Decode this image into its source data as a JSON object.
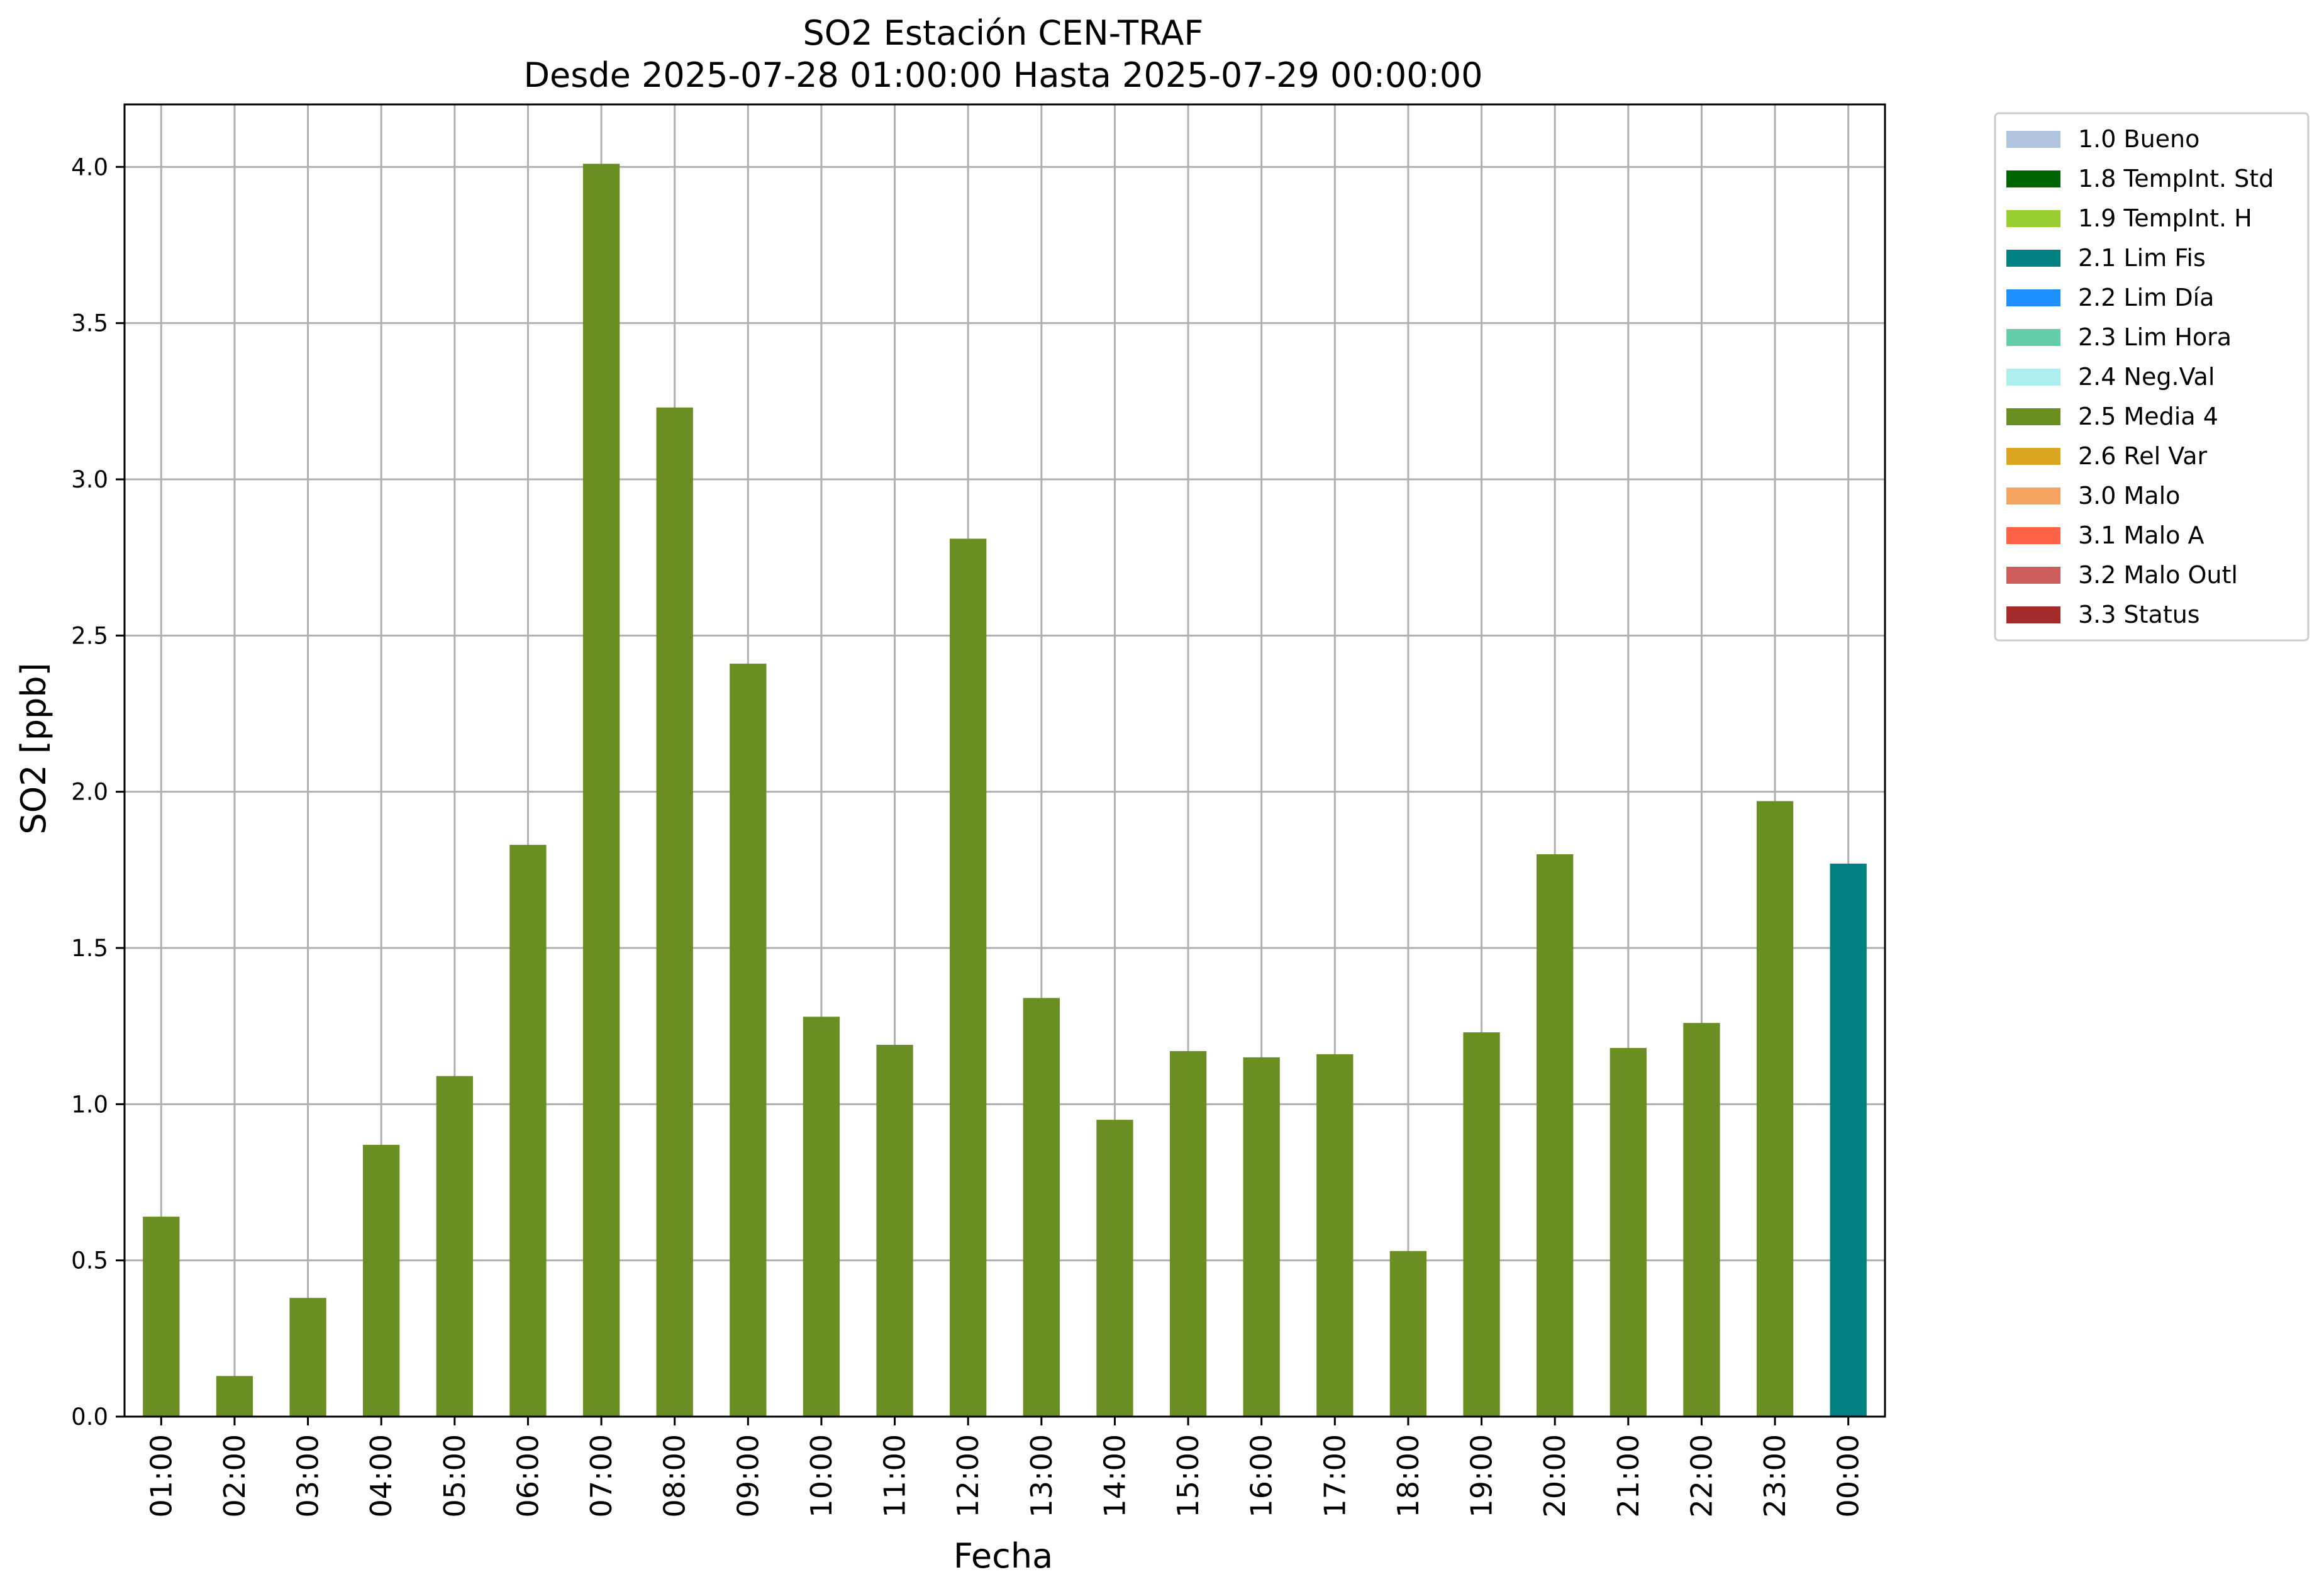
{
  "chart_data": {
    "type": "bar",
    "title": "SO2 Estación CEN-TRAF",
    "subtitle": "Desde 2025-07-28 01:00:00 Hasta 2025-07-29 00:00:00",
    "xlabel": "Fecha",
    "ylabel": "SO2 [ppb]",
    "ylim": [
      0,
      4.2
    ],
    "yticks": [
      "0.0",
      "0.5",
      "1.0",
      "1.5",
      "2.0",
      "2.5",
      "3.0",
      "3.5",
      "4.0"
    ],
    "grid": true,
    "legend_position": "outside-right",
    "categories": [
      "01:00",
      "02:00",
      "03:00",
      "04:00",
      "05:00",
      "06:00",
      "07:00",
      "08:00",
      "09:00",
      "10:00",
      "11:00",
      "12:00",
      "13:00",
      "14:00",
      "15:00",
      "16:00",
      "17:00",
      "18:00",
      "19:00",
      "20:00",
      "21:00",
      "22:00",
      "23:00",
      "00:00"
    ],
    "values": [
      0.64,
      0.13,
      0.38,
      0.87,
      1.09,
      1.83,
      4.01,
      3.23,
      2.41,
      1.28,
      1.19,
      2.81,
      1.34,
      0.95,
      1.17,
      1.15,
      1.16,
      0.53,
      1.23,
      1.8,
      1.18,
      1.26,
      1.97,
      1.77
    ],
    "bar_flags": [
      "2.5 Media 4",
      "2.5 Media 4",
      "2.5 Media 4",
      "2.5 Media 4",
      "2.5 Media 4",
      "2.5 Media 4",
      "2.5 Media 4",
      "2.5 Media 4",
      "2.5 Media 4",
      "2.5 Media 4",
      "2.5 Media 4",
      "2.5 Media 4",
      "2.5 Media 4",
      "2.5 Media 4",
      "2.5 Media 4",
      "2.5 Media 4",
      "2.5 Media 4",
      "2.5 Media 4",
      "2.5 Media 4",
      "2.5 Media 4",
      "2.5 Media 4",
      "2.5 Media 4",
      "2.5 Media 4",
      "2.1 Lim Fis"
    ],
    "legend": [
      {
        "label": "1.0 Bueno",
        "color": "#b0c4de"
      },
      {
        "label": "1.8 TempInt. Std",
        "color": "#006400"
      },
      {
        "label": "1.9 TempInt. H",
        "color": "#9acd32"
      },
      {
        "label": "2.1 Lim Fis",
        "color": "#008080"
      },
      {
        "label": "2.2 Lim Día",
        "color": "#1e90ff"
      },
      {
        "label": "2.3 Lim Hora",
        "color": "#66cdaa"
      },
      {
        "label": "2.4 Neg.Val",
        "color": "#afeeee"
      },
      {
        "label": "2.5 Media 4",
        "color": "#6b8e23"
      },
      {
        "label": "2.6 Rel Var",
        "color": "#daa520"
      },
      {
        "label": "3.0 Malo",
        "color": "#f4a460"
      },
      {
        "label": "3.1 Malo A",
        "color": "#ff6347"
      },
      {
        "label": "3.2 Malo Outl",
        "color": "#cd5c5c"
      },
      {
        "label": "3.3 Status",
        "color": "#a52a2a"
      }
    ]
  }
}
